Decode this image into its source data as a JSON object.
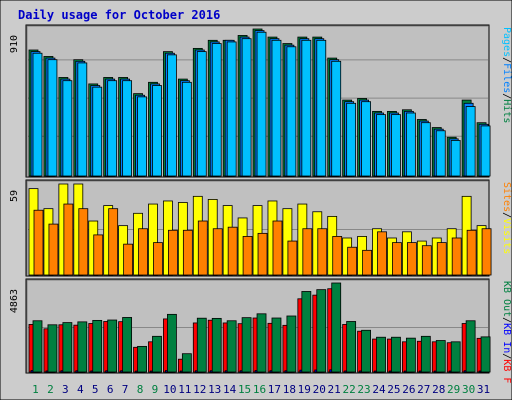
{
  "chart_data": {
    "type": "bar",
    "title": "Daily usage for October 2016",
    "categories": [
      "1",
      "2",
      "3",
      "4",
      "5",
      "6",
      "7",
      "8",
      "9",
      "10",
      "11",
      "12",
      "13",
      "14",
      "15",
      "16",
      "17",
      "18",
      "19",
      "20",
      "21",
      "22",
      "23",
      "24",
      "25",
      "26",
      "27",
      "28",
      "29",
      "30",
      "31"
    ],
    "weekend_days": [
      "1",
      "2",
      "8",
      "9",
      "15",
      "16",
      "22",
      "23",
      "29",
      "30"
    ],
    "colors": {
      "title": "#0000c8",
      "frame_bg": "#cccccc",
      "panel_bg": "#c0c0c0",
      "grid": "#888888",
      "weekday_label": "#000080",
      "weekend_label": "#008040"
    },
    "panels": [
      {
        "name": "hits",
        "max_label": "910",
        "ylim": [
          0,
          910
        ],
        "legend": [
          {
            "text": "Hits",
            "color": "#008040"
          },
          {
            "text": "/",
            "color": "#000000"
          },
          {
            "text": "Files",
            "color": "#0080ff"
          },
          {
            "text": "/",
            "color": "#000000"
          },
          {
            "text": "Pages",
            "color": "#00c0ff"
          }
        ],
        "series": [
          {
            "name": "Hits",
            "color": "#008040",
            "values": [
              780,
              740,
              610,
              720,
              570,
              610,
              610,
              510,
              580,
              770,
              600,
              790,
              840,
              840,
              870,
              910,
              860,
              820,
              860,
              860,
              730,
              470,
              480,
              400,
              400,
              410,
              350,
              300,
              240,
              470,
              330
            ]
          },
          {
            "name": "Files",
            "color": "#0080ff",
            "values": [
              770,
              730,
              600,
              710,
              560,
              600,
              600,
              500,
              570,
              760,
              590,
              780,
              830,
              840,
              860,
              900,
              850,
              810,
              850,
              850,
              720,
              460,
              470,
              390,
              390,
              400,
              340,
              290,
              230,
              450,
              320
            ]
          },
          {
            "name": "Pages",
            "color": "#00c0ff",
            "values": [
              760,
              720,
              590,
              700,
              550,
              590,
              590,
              490,
              560,
              750,
              580,
              770,
              820,
              830,
              850,
              890,
              840,
              800,
              840,
              840,
              710,
              450,
              460,
              380,
              380,
              390,
              330,
              280,
              220,
              430,
              310
            ]
          }
        ]
      },
      {
        "name": "visits",
        "max_label": "59",
        "ylim": [
          0,
          59
        ],
        "legend": [
          {
            "text": "Visits",
            "color": "#ffff00"
          },
          {
            "text": "/",
            "color": "#000000"
          },
          {
            "text": "Sites",
            "color": "#ff8000"
          }
        ],
        "series": [
          {
            "name": "Visits",
            "color": "#ffff00",
            "values": [
              56,
              43,
              59,
              59,
              35,
              45,
              32,
              40,
              46,
              48,
              47,
              51,
              49,
              45,
              37,
              45,
              48,
              43,
              46,
              41,
              38,
              24,
              25,
              30,
              24,
              28,
              22,
              24,
              30,
              51,
              32
            ]
          },
          {
            "name": "Sites",
            "color": "#ff8000",
            "values": [
              42,
              33,
              46,
              43,
              26,
              43,
              20,
              30,
              21,
              29,
              29,
              35,
              30,
              31,
              25,
              27,
              35,
              22,
              30,
              30,
              25,
              18,
              16,
              28,
              21,
              21,
              19,
              21,
              24,
              29,
              30
            ]
          }
        ]
      },
      {
        "name": "kbytes",
        "max_label": "4863",
        "ylim": [
          0,
          4863
        ],
        "legend": [
          {
            "text": "KB F",
            "color": "#ff0000"
          },
          {
            "text": "/",
            "color": "#000000"
          },
          {
            "text": "KB In",
            "color": "#0000ff"
          },
          {
            "text": "/",
            "color": "#000000"
          },
          {
            "text": "KB Out",
            "color": "#008040"
          }
        ],
        "series": [
          {
            "name": "KB F",
            "color": "#ff0000",
            "values": [
              2600,
              2360,
              2580,
              2560,
              2650,
              2760,
              2750,
              1350,
              1650,
              2900,
              700,
              2680,
              2830,
              2680,
              2640,
              2950,
              2660,
              2550,
              4000,
              4200,
              4550,
              2600,
              2230,
              1800,
              1800,
              1650,
              1680,
              1650,
              1600,
              2650,
              1840
            ]
          },
          {
            "name": "KB In",
            "color": "#0000ff",
            "values": [
              80,
              60,
              70,
              70,
              60,
              70,
              70,
              40,
              50,
              80,
              30,
              70,
              70,
              70,
              70,
              80,
              70,
              70,
              100,
              110,
              120,
              60,
              60,
              50,
              50,
              50,
              50,
              50,
              50,
              70,
              50
            ]
          },
          {
            "name": "KB Out",
            "color": "#008040",
            "values": [
              2800,
              2580,
              2700,
              2740,
              2820,
              2840,
              2980,
              1400,
              1950,
              3150,
              1000,
              2940,
              2930,
              2800,
              2970,
              3180,
              2950,
              3060,
              4400,
              4500,
              4863,
              2760,
              2280,
              1900,
              1900,
              1850,
              1950,
              1720,
              1650,
              2800,
              1920
            ]
          }
        ]
      }
    ]
  }
}
